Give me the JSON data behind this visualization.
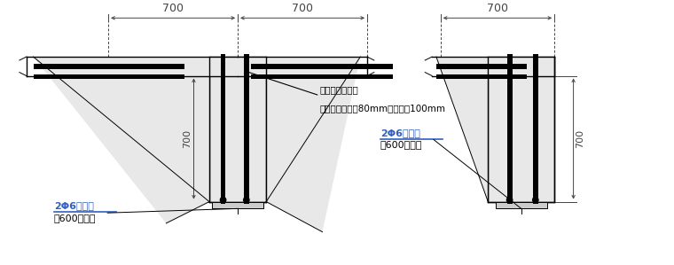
{
  "bg_color": "#ffffff",
  "line_color": "#000000",
  "annotation1": "采用结构胶植筋",
  "annotation2": "拉结筋植入深度80mm，配筋带100mm",
  "label_left1": "2Φ6沿墙高",
  "label_left2": "每600设一道",
  "label_right1": "2Φ6沿墙高",
  "label_right2": "每600设一道",
  "dim_700_label": "700",
  "text_color_blue": "#3060c0",
  "text_color_black": "#000000",
  "dim_color": "#444444"
}
